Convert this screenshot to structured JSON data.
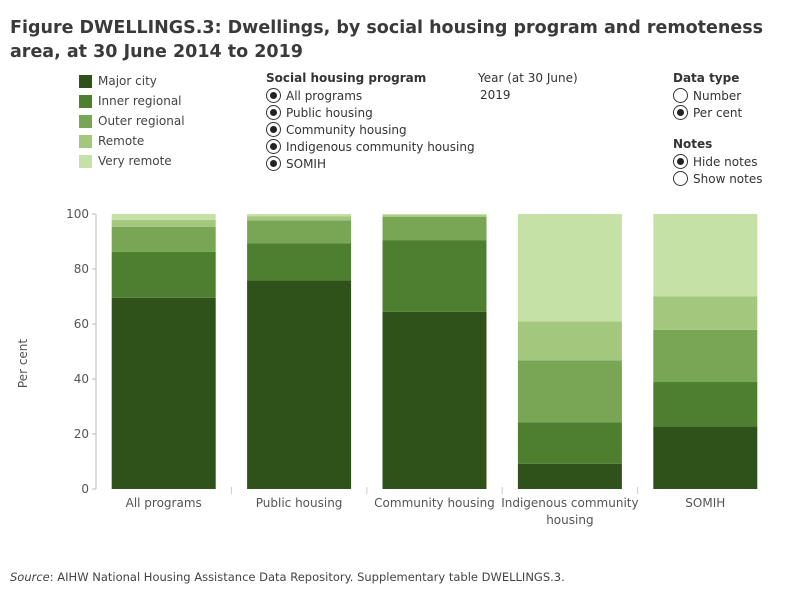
{
  "title": "Figure DWELLINGS.3: Dwellings, by social housing program and remoteness area, at 30 June 2014 to 2019",
  "legend": {
    "items": [
      {
        "label": "Major city",
        "color": "#2f521b"
      },
      {
        "label": "Inner regional",
        "color": "#4e7f2f"
      },
      {
        "label": "Outer regional",
        "color": "#78a655"
      },
      {
        "label": "Remote",
        "color": "#a3c77d"
      },
      {
        "label": "Very remote",
        "color": "#c6e1a6"
      }
    ]
  },
  "filters": {
    "program": {
      "title": "Social housing program",
      "options": [
        "All programs",
        "Public housing",
        "Community housing",
        "Indigenous community housing",
        "SOMIH"
      ]
    },
    "year": {
      "title": "Year (at 30 June)",
      "value": "2019"
    },
    "data_type": {
      "title": "Data type",
      "options": [
        "Number",
        "Per cent"
      ],
      "selected": "Per cent"
    },
    "notes": {
      "title": "Notes",
      "options": [
        "Hide notes",
        "Show notes"
      ],
      "selected": "Hide notes"
    }
  },
  "source": {
    "label": "Source",
    "text": ": AIHW National Housing Assistance Data Repository. Supplementary table DWELLINGS.3."
  },
  "chart_data": {
    "type": "bar",
    "stacked": true,
    "categories": [
      "All programs",
      "Public housing",
      "Community housing",
      "Indigenous community housing",
      "SOMIH"
    ],
    "series": [
      {
        "name": "Major city",
        "values": [
          69.5,
          75.8,
          64.4,
          9.2,
          22.8
        ]
      },
      {
        "name": "Inner regional",
        "values": [
          16.7,
          13.6,
          26.1,
          15.1,
          16.1
        ]
      },
      {
        "name": "Outer regional",
        "values": [
          9.1,
          8.3,
          8.5,
          22.5,
          19.0
        ]
      },
      {
        "name": "Remote",
        "values": [
          2.5,
          1.5,
          0.6,
          14.1,
          12.1
        ]
      },
      {
        "name": "Very remote",
        "values": [
          2.2,
          0.8,
          0.4,
          39.1,
          30.0
        ]
      }
    ],
    "ylabel": "Per cent",
    "xlabel": "",
    "ylim": [
      0,
      100
    ],
    "yticks": [
      0,
      20,
      40,
      60,
      80,
      100
    ],
    "grid": false
  }
}
